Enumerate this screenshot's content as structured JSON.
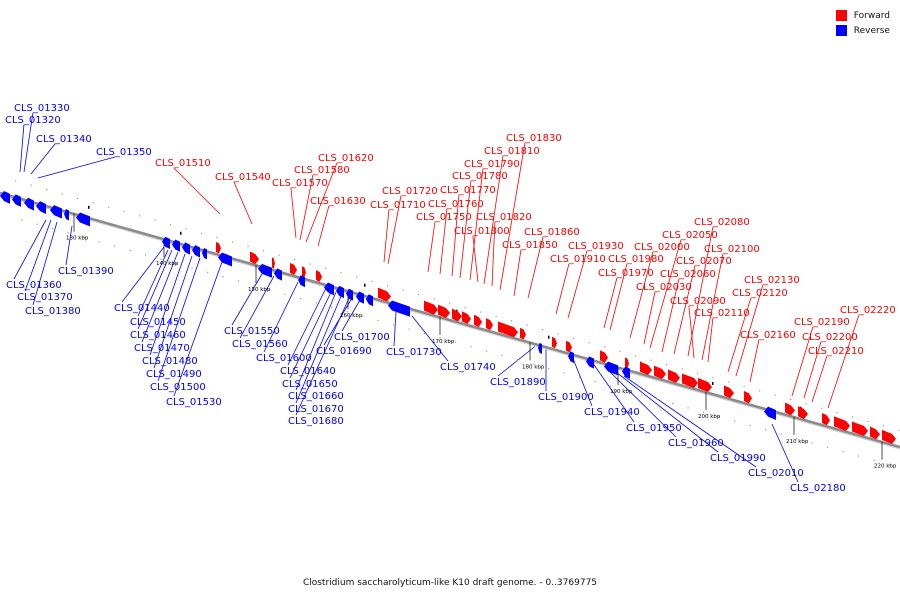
{
  "legend": {
    "forward": {
      "label": "Forward",
      "color": "#ff0000"
    },
    "reverse": {
      "label": "Reverse",
      "color": "#0000ff"
    }
  },
  "caption": "Clostridium saccharolyticum-like K10 draft genome. - 0..3769775",
  "axis_line_color": "#8a8a8a",
  "ticks_kbp": [
    "130 kbp",
    "140 kbp",
    "150 kbp",
    "160 kbp",
    "170 kbp",
    "180 kbp",
    "190 kbp",
    "200 kbp",
    "210 kbp",
    "220 kbp"
  ],
  "genes_reverse": [
    "CLS_01330",
    "CLS_01320",
    "CLS_01340",
    "CLS_01350",
    "CLS_01360",
    "CLS_01370",
    "CLS_01380",
    "CLS_01390",
    "CLS_01440",
    "CLS_01450",
    "CLS_01460",
    "CLS_01470",
    "CLS_01480",
    "CLS_01490",
    "CLS_01500",
    "CLS_01530",
    "CLS_01550",
    "CLS_01560",
    "CLS_01600",
    "CLS_01640",
    "CLS_01650",
    "CLS_01660",
    "CLS_01670",
    "CLS_01680",
    "CLS_01690",
    "CLS_01700",
    "CLS_01730",
    "CLS_01740",
    "CLS_01890",
    "CLS_01900",
    "CLS_01940",
    "CLS_01950",
    "CLS_01960",
    "CLS_01990",
    "CLS_02010",
    "CLS_02180"
  ],
  "genes_forward": [
    "CLS_01510",
    "CLS_01540",
    "CLS_01570",
    "CLS_01580",
    "CLS_01620",
    "CLS_01630",
    "CLS_01710",
    "CLS_01720",
    "CLS_01750",
    "CLS_01760",
    "CLS_01770",
    "CLS_01780",
    "CLS_01790",
    "CLS_01800",
    "CLS_01810",
    "CLS_01820",
    "CLS_01830",
    "CLS_01850",
    "CLS_01860",
    "CLS_01910",
    "CLS_01930",
    "CLS_01970",
    "CLS_01980",
    "CLS_02000",
    "CLS_02030",
    "CLS_02050",
    "CLS_02060",
    "CLS_02070",
    "CLS_02080",
    "CLS_02090",
    "CLS_02100",
    "CLS_02110",
    "CLS_02120",
    "CLS_02130",
    "CLS_02160",
    "CLS_02190",
    "CLS_02200",
    "CLS_02210",
    "CLS_02220"
  ]
}
